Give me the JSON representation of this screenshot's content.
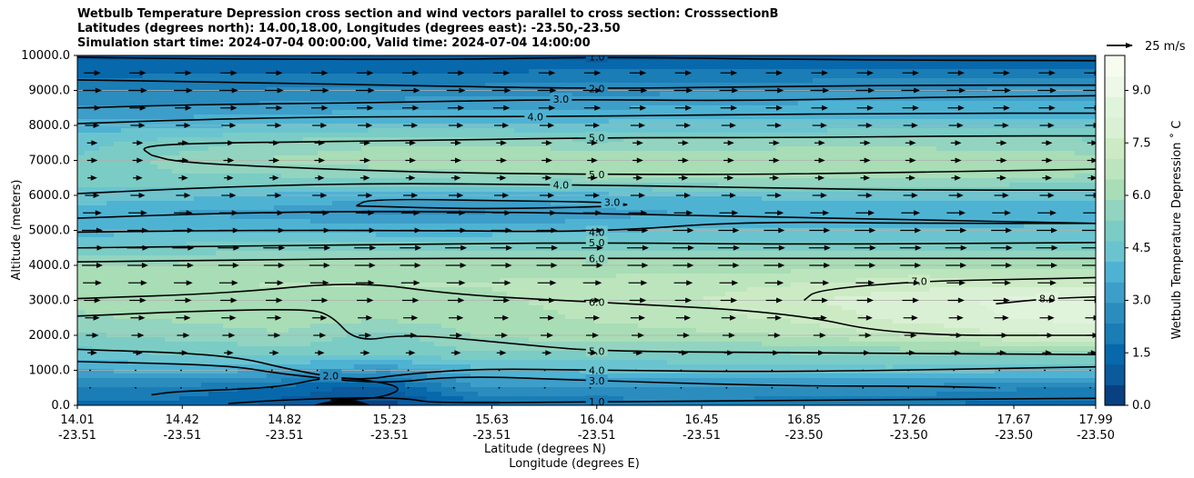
{
  "chart_data": {
    "type": "contour",
    "title": [
      "Wetbulb Temperature Depression cross section and wind vectors parallel to cross section: CrosssectionB",
      "Latitudes (degrees north): 14.00,18.00, Longitudes (degrees east): -23.50,-23.50",
      "Simulation start time: 2024-07-04 00:00:00, Valid time: 2024-07-04 14:00:00"
    ],
    "ylabel": "Altitude (meters)",
    "xlabel": "Latitude (degrees N)",
    "xlabel2": "Longitude (degrees E)",
    "ylim": [
      0,
      10000
    ],
    "yticks": [
      "0.0",
      "1000.0",
      "2000.0",
      "3000.0",
      "4000.0",
      "5000.0",
      "6000.0",
      "7000.0",
      "8000.0",
      "9000.0",
      "10000.0"
    ],
    "ytick_values": [
      0,
      1000,
      2000,
      3000,
      4000,
      5000,
      6000,
      7000,
      8000,
      9000,
      10000
    ],
    "xlim": [
      14.01,
      17.99
    ],
    "xticks_lat": [
      "14.01",
      "14.42",
      "14.82",
      "15.23",
      "15.63",
      "16.04",
      "16.45",
      "16.85",
      "17.26",
      "17.67",
      "17.99"
    ],
    "xticks_lon": [
      "-23.51",
      "-23.51",
      "-23.51",
      "-23.51",
      "-23.51",
      "-23.51",
      "-23.51",
      "-23.50",
      "-23.50",
      "-23.50",
      "-23.50"
    ],
    "xtick_values": [
      14.01,
      14.42,
      14.82,
      15.23,
      15.63,
      16.04,
      16.45,
      16.85,
      17.26,
      17.67,
      17.99
    ],
    "grid": "horizontal",
    "colorbar": {
      "label": "Wetbulb Temperature Depression $^\\circ$C",
      "label_text": "Wetbulb Temperature Depression ˚ C",
      "range": [
        0,
        10
      ],
      "ticks": [
        "0.0",
        "1.5",
        "3.0",
        "4.5",
        "6.0",
        "7.5",
        "9.0"
      ],
      "tick_values": [
        0,
        1.5,
        3.0,
        4.5,
        6.0,
        7.5,
        9.0
      ],
      "cmap": "GnBu_r",
      "colors": [
        "#084081",
        "#0a5a9c",
        "#0868ac",
        "#1a7db6",
        "#2b8cbe",
        "#3d9ec9",
        "#4eb3d3",
        "#6ac4d0",
        "#7bccc4",
        "#92d4bf",
        "#a8ddb5",
        "#bce5be",
        "#ccebc5",
        "#daf0d4",
        "#e0f3db",
        "#edf8e8",
        "#f7fcf0"
      ]
    },
    "wind_key": {
      "label": "25 m/s",
      "speed": 25
    },
    "wind_rows_altitude": [
      500,
      1000,
      1500,
      2000,
      2500,
      3000,
      3500,
      4000,
      4500,
      5000,
      5500,
      6000,
      6500,
      7000,
      7500,
      8000,
      8500,
      9000,
      9500
    ],
    "wind_speed_by_row": [
      2,
      3,
      5,
      8,
      10,
      12,
      14,
      16,
      17,
      16,
      14,
      10,
      5,
      6,
      6,
      10,
      12,
      14,
      12
    ],
    "contour_labels": [
      "1.0",
      "2.0",
      "3.0",
      "4.0",
      "5.0",
      "4.0",
      "3.0",
      "4.0",
      "5.0",
      "6.0",
      "6.0",
      "7.0",
      "8.0",
      "5.0",
      "5.0",
      "6.0",
      "4.0",
      "3.0",
      "1.0",
      "2.0",
      "1.0",
      "2.0",
      "2.0",
      "1.0",
      "2.0"
    ],
    "contours": [
      {
        "level": "1.0",
        "label": "1.0",
        "points": [
          [
            14.01,
            9950
          ],
          [
            14.5,
            9900
          ],
          [
            15.5,
            9880
          ],
          [
            16.04,
            9960
          ],
          [
            17.0,
            9870
          ],
          [
            17.99,
            9850
          ]
        ]
      },
      {
        "level": "2.0",
        "label": "2.0",
        "points": [
          [
            14.01,
            9300
          ],
          [
            14.5,
            9250
          ],
          [
            15.2,
            9150
          ],
          [
            16.04,
            9050
          ],
          [
            16.6,
            9100
          ],
          [
            17.3,
            9150
          ],
          [
            17.99,
            9150
          ]
        ]
      },
      {
        "level": "3.0",
        "label": "3.0",
        "points": [
          [
            14.01,
            8500
          ],
          [
            14.5,
            8600
          ],
          [
            15.2,
            8650
          ],
          [
            15.9,
            8750
          ],
          [
            16.6,
            8700
          ],
          [
            17.3,
            8800
          ],
          [
            17.99,
            8850
          ]
        ]
      },
      {
        "level": "4.0",
        "label": "4.0",
        "points": [
          [
            14.01,
            8050
          ],
          [
            14.4,
            8150
          ],
          [
            15.0,
            8250
          ],
          [
            15.8,
            8250
          ],
          [
            16.5,
            8300
          ],
          [
            17.3,
            8350
          ],
          [
            17.99,
            8350
          ]
        ]
      },
      {
        "level": "5.0",
        "label": "5.0",
        "points": [
          [
            14.3,
            7150
          ],
          [
            14.25,
            7400
          ],
          [
            14.5,
            7500
          ],
          [
            15.2,
            7550
          ],
          [
            16.04,
            7650
          ],
          [
            16.8,
            7650
          ],
          [
            17.5,
            7700
          ],
          [
            17.99,
            7700
          ]
        ]
      },
      {
        "level": "5.0b",
        "label": "5.0",
        "points": [
          [
            14.3,
            7150
          ],
          [
            14.4,
            6950
          ],
          [
            14.8,
            6800
          ],
          [
            15.4,
            6650
          ],
          [
            16.04,
            6600
          ],
          [
            16.8,
            6600
          ],
          [
            17.99,
            6750
          ]
        ]
      },
      {
        "level": "4.0b",
        "label": "4.0",
        "points": [
          [
            14.01,
            6050
          ],
          [
            14.6,
            6250
          ],
          [
            15.2,
            6350
          ],
          [
            15.9,
            6300
          ],
          [
            16.5,
            6250
          ],
          [
            17.2,
            6150
          ],
          [
            17.99,
            6150
          ]
        ]
      },
      {
        "level": "3.0b",
        "label": "3.0",
        "points": [
          [
            15.1,
            5700
          ],
          [
            15.15,
            5900
          ],
          [
            15.7,
            5850
          ],
          [
            16.1,
            5800
          ],
          [
            16.2,
            5700
          ],
          [
            15.6,
            5600
          ],
          [
            15.1,
            5700
          ]
        ]
      },
      {
        "level": "3.0c",
        "label": "",
        "points": [
          [
            14.01,
            5350
          ],
          [
            14.6,
            5500
          ],
          [
            15.2,
            5550
          ],
          [
            15.9,
            5500
          ],
          [
            16.6,
            5400
          ],
          [
            17.3,
            5300
          ],
          [
            17.99,
            5200
          ]
        ]
      },
      {
        "level": "4.0c",
        "label": "4.0",
        "points": [
          [
            14.01,
            4950
          ],
          [
            14.6,
            5000
          ],
          [
            15.3,
            5000
          ],
          [
            16.04,
            4950
          ],
          [
            16.6,
            5250
          ],
          [
            17.3,
            5200
          ],
          [
            17.99,
            5200
          ]
        ]
      },
      {
        "level": "5.0c",
        "label": "5.0",
        "points": [
          [
            14.01,
            4500
          ],
          [
            14.6,
            4550
          ],
          [
            15.3,
            4600
          ],
          [
            16.04,
            4650
          ],
          [
            16.8,
            4600
          ],
          [
            17.99,
            4650
          ]
        ]
      },
      {
        "level": "6.0",
        "label": "6.0",
        "points": [
          [
            14.01,
            4100
          ],
          [
            14.6,
            4150
          ],
          [
            15.3,
            4200
          ],
          [
            16.04,
            4200
          ],
          [
            16.8,
            4200
          ],
          [
            17.99,
            4200
          ]
        ]
      },
      {
        "level": "6.0b",
        "label": "6.0",
        "points": [
          [
            14.01,
            3050
          ],
          [
            14.6,
            3200
          ],
          [
            15.1,
            3550
          ],
          [
            15.5,
            3150
          ],
          [
            16.04,
            2950
          ],
          [
            16.8,
            2650
          ],
          [
            17.2,
            2000
          ],
          [
            17.99,
            2000
          ]
        ]
      },
      {
        "level": "7.0",
        "label": "7.0",
        "points": [
          [
            16.85,
            3000
          ],
          [
            16.9,
            3300
          ],
          [
            17.3,
            3550
          ],
          [
            17.7,
            3600
          ],
          [
            17.99,
            3650
          ]
        ]
      },
      {
        "level": "8.0",
        "label": "8.0",
        "points": [
          [
            17.6,
            2900
          ],
          [
            17.8,
            3050
          ],
          [
            17.99,
            3100
          ]
        ]
      },
      {
        "level": "5.0d",
        "label": "5.0",
        "points": [
          [
            14.01,
            2550
          ],
          [
            14.5,
            2700
          ],
          [
            14.9,
            2750
          ],
          [
            15.0,
            2600
          ],
          [
            15.1,
            1800
          ],
          [
            15.3,
            2050
          ],
          [
            15.8,
            1700
          ],
          [
            16.04,
            1550
          ],
          [
            16.8,
            1500
          ],
          [
            17.99,
            1450
          ]
        ]
      },
      {
        "level": "4.0d",
        "label": "4.0",
        "points": [
          [
            14.01,
            1600
          ],
          [
            14.6,
            1450
          ],
          [
            14.85,
            1000
          ],
          [
            15.1,
            700
          ],
          [
            15.3,
            900
          ],
          [
            15.6,
            1050
          ],
          [
            16.04,
            1000
          ],
          [
            16.8,
            950
          ],
          [
            17.99,
            1100
          ]
        ]
      },
      {
        "level": "3.0d",
        "label": "3.0",
        "points": [
          [
            14.01,
            1250
          ],
          [
            14.6,
            1150
          ],
          [
            14.8,
            900
          ],
          [
            15.2,
            600
          ],
          [
            15.5,
            850
          ],
          [
            16.04,
            700
          ],
          [
            16.8,
            550
          ],
          [
            17.3,
            550
          ],
          [
            17.6,
            500
          ]
        ]
      },
      {
        "level": "2.0d",
        "label": "2.0",
        "points": [
          [
            14.3,
            300
          ],
          [
            14.4,
            400
          ],
          [
            14.8,
            500
          ],
          [
            15.0,
            850
          ],
          [
            15.3,
            550
          ],
          [
            15.2,
            200
          ],
          [
            15.0,
            150
          ]
        ]
      },
      {
        "level": "1.0d",
        "label": "1.0",
        "points": [
          [
            14.6,
            50
          ],
          [
            14.8,
            150
          ],
          [
            15.1,
            220
          ],
          [
            15.3,
            200
          ],
          [
            15.4,
            60
          ],
          [
            16.04,
            100
          ],
          [
            17.0,
            150
          ],
          [
            17.99,
            200
          ]
        ]
      }
    ],
    "depression_field": [
      {
        "alt": 0,
        "values": [
          1.5,
          1.5,
          1.0,
          0.3,
          1.5,
          2.0,
          2.2,
          2.0,
          2.0,
          1.5,
          1.5
        ]
      },
      {
        "alt": 500,
        "values": [
          2.2,
          2.2,
          1.5,
          1.0,
          3.0,
          2.8,
          2.8,
          2.8,
          2.8,
          2.5,
          2.2
        ]
      },
      {
        "alt": 1000,
        "values": [
          3.5,
          3.8,
          3.5,
          3.0,
          4.0,
          4.2,
          4.2,
          4.5,
          4.5,
          4.2,
          4.2
        ]
      },
      {
        "alt": 1500,
        "values": [
          4.5,
          4.8,
          5.0,
          5.0,
          5.2,
          5.2,
          5.3,
          5.3,
          5.5,
          5.5,
          5.5
        ]
      },
      {
        "alt": 2000,
        "values": [
          5.2,
          5.5,
          5.8,
          5.0,
          6.0,
          6.2,
          6.3,
          6.5,
          7.0,
          7.5,
          7.8
        ]
      },
      {
        "alt": 2500,
        "values": [
          5.8,
          6.0,
          6.2,
          6.0,
          6.3,
          6.5,
          6.8,
          7.2,
          7.8,
          8.2,
          8.5
        ]
      },
      {
        "alt": 3000,
        "values": [
          6.0,
          6.3,
          6.4,
          6.2,
          6.4,
          6.6,
          7.0,
          7.5,
          8.0,
          8.3,
          8.5
        ]
      },
      {
        "alt": 3500,
        "values": [
          6.2,
          6.4,
          6.5,
          6.5,
          6.5,
          6.6,
          6.8,
          7.0,
          7.3,
          7.5,
          7.5
        ]
      },
      {
        "alt": 4000,
        "values": [
          6.0,
          6.1,
          6.2,
          6.2,
          6.2,
          6.2,
          6.2,
          6.2,
          6.3,
          6.3,
          6.3
        ]
      },
      {
        "alt": 4500,
        "values": [
          4.8,
          4.9,
          5.0,
          5.0,
          5.0,
          5.0,
          5.0,
          5.0,
          5.0,
          5.0,
          5.0
        ]
      },
      {
        "alt": 5000,
        "values": [
          3.8,
          4.0,
          4.0,
          3.8,
          3.8,
          4.0,
          4.2,
          4.2,
          4.2,
          4.2,
          4.3
        ]
      },
      {
        "alt": 5500,
        "values": [
          3.8,
          3.5,
          3.3,
          2.8,
          2.9,
          3.2,
          3.6,
          3.8,
          3.8,
          3.8,
          3.8
        ]
      },
      {
        "alt": 6000,
        "values": [
          4.5,
          4.3,
          4.0,
          3.8,
          3.8,
          3.9,
          4.2,
          4.2,
          4.2,
          4.3,
          4.3
        ]
      },
      {
        "alt": 6500,
        "values": [
          5.0,
          5.2,
          5.2,
          5.4,
          5.6,
          5.8,
          6.0,
          6.1,
          6.1,
          6.0,
          5.8
        ]
      },
      {
        "alt": 7000,
        "values": [
          4.8,
          5.5,
          6.0,
          6.2,
          6.5,
          6.4,
          6.3,
          6.5,
          6.4,
          6.3,
          6.1
        ]
      },
      {
        "alt": 7500,
        "values": [
          4.5,
          5.0,
          5.5,
          5.8,
          5.8,
          5.5,
          5.6,
          5.6,
          5.7,
          5.6,
          5.5
        ]
      },
      {
        "alt": 8000,
        "values": [
          3.8,
          4.0,
          4.2,
          4.3,
          4.3,
          4.3,
          4.3,
          4.3,
          4.4,
          4.4,
          4.4
        ]
      },
      {
        "alt": 8500,
        "values": [
          3.0,
          3.0,
          3.2,
          3.4,
          3.5,
          3.5,
          3.6,
          3.8,
          3.8,
          3.8,
          3.8
        ]
      },
      {
        "alt": 9000,
        "values": [
          2.2,
          2.3,
          2.4,
          2.5,
          2.6,
          2.7,
          2.8,
          2.8,
          2.9,
          3.0,
          3.0
        ]
      },
      {
        "alt": 9500,
        "values": [
          1.6,
          1.7,
          1.8,
          1.8,
          1.8,
          1.9,
          2.0,
          2.0,
          2.0,
          2.0,
          2.0
        ]
      },
      {
        "alt": 10000,
        "values": [
          1.0,
          1.0,
          1.0,
          1.0,
          1.0,
          1.0,
          1.0,
          1.0,
          1.0,
          1.0,
          1.0
        ]
      }
    ]
  }
}
